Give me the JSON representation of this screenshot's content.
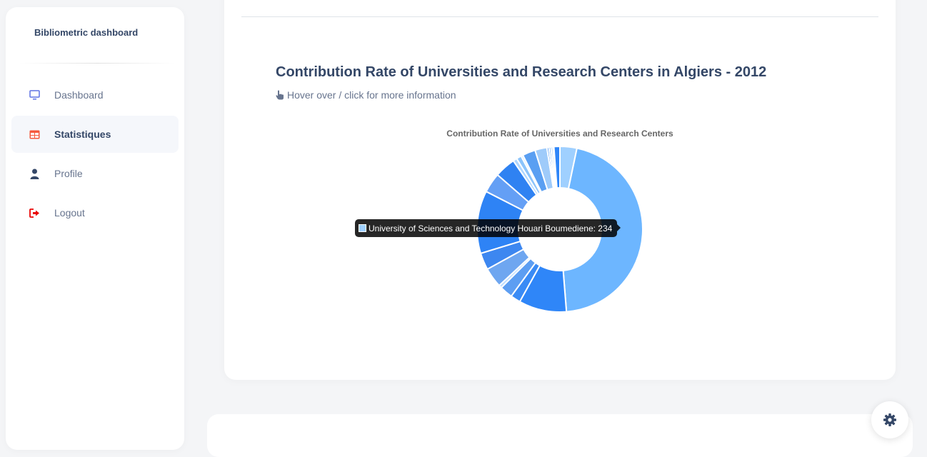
{
  "sidebar": {
    "brand": "Bibliometric dashboard",
    "items": [
      {
        "label": "Dashboard",
        "icon": "monitor-icon",
        "active": false
      },
      {
        "label": "Statistiques",
        "icon": "table-icon",
        "active": true
      },
      {
        "label": "Profile",
        "icon": "user-icon",
        "active": false
      },
      {
        "label": "Logout",
        "icon": "logout-icon",
        "active": false
      }
    ]
  },
  "main": {
    "title": "Contribution Rate of Universities and Research Centers in Algiers - 2012",
    "hint": "Hover over / click for more information",
    "hint_icon": "pointer-hand-icon"
  },
  "chart_data": {
    "type": "pie",
    "variant": "doughnut",
    "title": "Contribution Rate of Universities and Research Centers",
    "slices": [
      {
        "value": 17,
        "color": "#9fd0ff"
      },
      {
        "value": 234,
        "label": "University of Sciences and Technology Houari Boumediene",
        "color": "#6db6ff"
      },
      {
        "value": 48,
        "color": "#2f86f8"
      },
      {
        "value": 10,
        "color": "#3a8bf5"
      },
      {
        "value": 13,
        "color": "#5d9ef2"
      },
      {
        "value": 3,
        "color": "#bcdcff"
      },
      {
        "value": 20,
        "color": "#6ea6f0"
      },
      {
        "value": 17,
        "color": "#3d87f0"
      },
      {
        "value": 63,
        "color": "#2e83f5"
      },
      {
        "value": 20,
        "color": "#649ff5"
      },
      {
        "value": 21,
        "color": "#2f82f2"
      },
      {
        "value": 4,
        "color": "#aed6ff"
      },
      {
        "value": 5,
        "color": "#8cc4fb"
      },
      {
        "value": 2,
        "color": "#d4e9ff"
      },
      {
        "value": 13,
        "color": "#5a9ff2"
      },
      {
        "value": 12,
        "color": "#9fcbfa"
      },
      {
        "value": 2,
        "color": "#3f8ef5"
      },
      {
        "value": 2,
        "color": "#6fb0f7"
      },
      {
        "value": 2,
        "color": "#a8d1fc"
      },
      {
        "value": 1,
        "color": "#2f86f8"
      },
      {
        "value": 6,
        "color": "#2f86f8"
      }
    ],
    "tooltip": {
      "label": "University of Sciences and Technology Houari Boumediene: 234",
      "color": "#9fd0ff"
    }
  },
  "colors": {
    "primary_text": "#344767",
    "secondary_text": "#67748e",
    "accent_red": "#ea0606"
  },
  "settings_icon": "gear-icon"
}
